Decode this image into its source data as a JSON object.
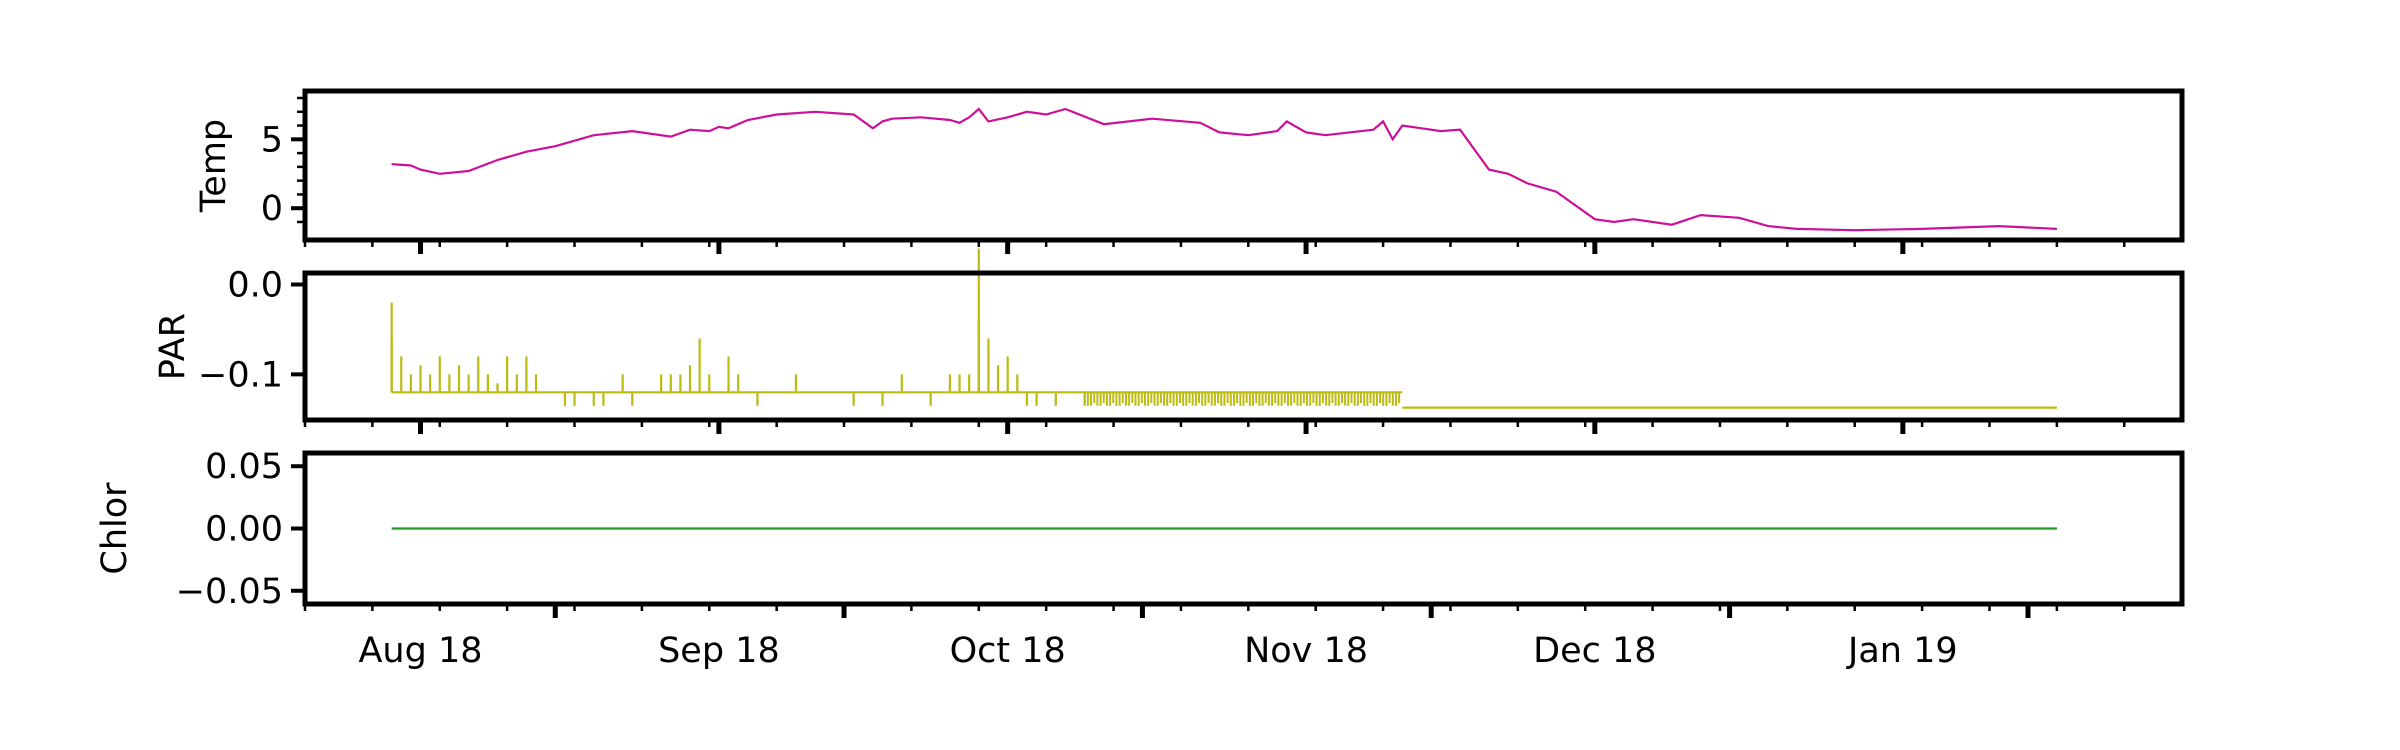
{
  "chart_data": [
    {
      "type": "line",
      "ylabel": "Temp",
      "color": "#cc1199",
      "ylim": [
        -1.8,
        8
      ],
      "yticks": [
        {
          "v": 0,
          "label": "0"
        },
        {
          "v": 5,
          "label": "5"
        }
      ],
      "series": [
        {
          "x": [
            "2018-08-15",
            "2018-08-17",
            "2018-08-18",
            "2018-08-20",
            "2018-08-23",
            "2018-08-26",
            "2018-08-29",
            "2018-09-01",
            "2018-09-05",
            "2018-09-09",
            "2018-09-13",
            "2018-09-15",
            "2018-09-17",
            "2018-09-18",
            "2018-09-19",
            "2018-09-21",
            "2018-09-24",
            "2018-09-28",
            "2018-10-02",
            "2018-10-04",
            "2018-10-05",
            "2018-10-06",
            "2018-10-09",
            "2018-10-12",
            "2018-10-13",
            "2018-10-14",
            "2018-10-15",
            "2018-10-16",
            "2018-10-18",
            "2018-10-20",
            "2018-10-22",
            "2018-10-24",
            "2018-10-28",
            "2018-11-02",
            "2018-11-07",
            "2018-11-09",
            "2018-11-12",
            "2018-11-15",
            "2018-11-16",
            "2018-11-17",
            "2018-11-18",
            "2018-11-20",
            "2018-11-25",
            "2018-11-26",
            "2018-11-27",
            "2018-11-28",
            "2018-11-30",
            "2018-12-02",
            "2018-12-04",
            "2018-12-07",
            "2018-12-09",
            "2018-12-11",
            "2018-12-14",
            "2018-12-18",
            "2018-12-20",
            "2018-12-22",
            "2018-12-26",
            "2018-12-29",
            "2019-01-02",
            "2019-01-05",
            "2019-01-08",
            "2019-01-14",
            "2019-01-21",
            "2019-01-29",
            "2019-02-04"
          ],
          "y": [
            3.2,
            3.1,
            2.8,
            2.5,
            2.7,
            3.5,
            4.1,
            4.5,
            5.3,
            5.6,
            5.2,
            5.7,
            5.6,
            5.9,
            5.8,
            6.4,
            6.8,
            7.0,
            6.8,
            5.8,
            6.3,
            6.5,
            6.6,
            6.4,
            6.2,
            6.6,
            7.2,
            6.3,
            6.6,
            7.0,
            6.8,
            7.2,
            6.1,
            6.5,
            6.2,
            5.5,
            5.3,
            5.6,
            6.3,
            5.9,
            5.5,
            5.3,
            5.7,
            6.3,
            5.0,
            6.0,
            5.8,
            5.6,
            5.7,
            2.8,
            2.5,
            1.8,
            1.2,
            -0.8,
            -1.0,
            -0.8,
            -1.2,
            -0.5,
            -0.7,
            -1.3,
            -1.5,
            -1.6,
            -1.5,
            -1.3,
            -1.5
          ]
        }
      ]
    },
    {
      "type": "line",
      "ylabel": "PAR",
      "color": "#bbbb11",
      "ylim": [
        -0.143,
        0.005
      ],
      "yticks": [
        {
          "v": 0,
          "label": "0.0"
        },
        {
          "v": -0.1,
          "label": "−0.1"
        }
      ],
      "baseline": [
        {
          "start": "2018-08-15",
          "end": "2018-11-28",
          "value": -0.12
        },
        {
          "start": "2018-11-28",
          "end": "2019-02-04",
          "value": -0.137
        }
      ],
      "spikes": [
        {
          "x": "2018-08-15",
          "value": -0.06
        },
        {
          "x": "2018-08-15",
          "value": -0.02
        },
        {
          "x": "2018-08-16",
          "value": -0.08
        },
        {
          "x": "2018-08-17",
          "value": -0.1
        },
        {
          "x": "2018-08-18",
          "value": -0.09
        },
        {
          "x": "2018-08-19",
          "value": -0.1
        },
        {
          "x": "2018-08-20",
          "value": -0.08
        },
        {
          "x": "2018-08-21",
          "value": -0.1
        },
        {
          "x": "2018-08-22",
          "value": -0.09
        },
        {
          "x": "2018-08-23",
          "value": -0.1
        },
        {
          "x": "2018-08-24",
          "value": -0.08
        },
        {
          "x": "2018-08-25",
          "value": -0.1
        },
        {
          "x": "2018-08-26",
          "value": -0.11
        },
        {
          "x": "2018-08-27",
          "value": -0.08
        },
        {
          "x": "2018-08-28",
          "value": -0.1
        },
        {
          "x": "2018-08-29",
          "value": -0.08
        },
        {
          "x": "2018-08-30",
          "value": -0.1
        },
        {
          "x": "2018-09-02",
          "value": -0.135
        },
        {
          "x": "2018-09-03",
          "value": -0.135
        },
        {
          "x": "2018-09-05",
          "value": -0.135
        },
        {
          "x": "2018-09-06",
          "value": -0.135
        },
        {
          "x": "2018-09-08",
          "value": -0.1
        },
        {
          "x": "2018-09-09",
          "value": -0.135
        },
        {
          "x": "2018-09-12",
          "value": -0.1
        },
        {
          "x": "2018-09-13",
          "value": -0.1
        },
        {
          "x": "2018-09-14",
          "value": -0.1
        },
        {
          "x": "2018-09-15",
          "value": -0.09
        },
        {
          "x": "2018-09-16",
          "value": -0.06
        },
        {
          "x": "2018-09-17",
          "value": -0.1
        },
        {
          "x": "2018-09-19",
          "value": -0.08
        },
        {
          "x": "2018-09-20",
          "value": -0.1
        },
        {
          "x": "2018-09-22",
          "value": -0.135
        },
        {
          "x": "2018-09-26",
          "value": -0.1
        },
        {
          "x": "2018-10-02",
          "value": -0.135
        },
        {
          "x": "2018-10-05",
          "value": -0.135
        },
        {
          "x": "2018-10-07",
          "value": -0.1
        },
        {
          "x": "2018-10-10",
          "value": -0.135
        },
        {
          "x": "2018-10-12",
          "value": -0.1
        },
        {
          "x": "2018-10-13",
          "value": -0.1
        },
        {
          "x": "2018-10-14",
          "value": -0.1
        },
        {
          "x": "2018-10-15",
          "value": 0.04
        },
        {
          "x": "2018-10-15",
          "value": -0.04
        },
        {
          "x": "2018-10-16",
          "value": -0.06
        },
        {
          "x": "2018-10-17",
          "value": -0.09
        },
        {
          "x": "2018-10-18",
          "value": -0.08
        },
        {
          "x": "2018-10-19",
          "value": -0.1
        },
        {
          "x": "2018-10-20",
          "value": -0.135
        },
        {
          "x": "2018-10-21",
          "value": -0.135
        },
        {
          "x": "2018-10-23",
          "value": -0.135
        },
        {
          "x": "2018-10-26",
          "value": -0.135
        },
        {
          "x": "2018-11-30",
          "value": -0.12
        }
      ],
      "dense_noise": {
        "start": "2018-10-26",
        "end": "2018-11-28",
        "low": -0.135
      }
    },
    {
      "type": "line",
      "ylabel": "Chlor",
      "color": "#229922",
      "ylim": [
        -0.055,
        0.055
      ],
      "yticks": [
        {
          "v": 0.05,
          "label": "0.05"
        },
        {
          "v": 0,
          "label": "0.00"
        },
        {
          "v": -0.05,
          "label": "−0.05"
        }
      ],
      "series": [
        {
          "x": [
            "2018-08-15",
            "2019-02-04"
          ],
          "y": [
            0,
            0
          ]
        }
      ]
    }
  ],
  "xaxis": {
    "range": [
      "2018-08-06",
      "2019-02-17"
    ],
    "ticks_top": [
      {
        "date": "2018-08-18"
      },
      {
        "date": "2018-09-18"
      },
      {
        "date": "2018-10-18"
      },
      {
        "date": "2018-11-18"
      },
      {
        "date": "2018-12-18"
      },
      {
        "date": "2019-01-19"
      }
    ],
    "ticks_bottom": [
      {
        "date": "2018-08-18",
        "label": "Aug 18"
      },
      {
        "date": "2018-09-18",
        "label": "Sep 18"
      },
      {
        "date": "2018-10-18",
        "label": "Oct 18"
      },
      {
        "date": "2018-11-18",
        "label": "Nov 18"
      },
      {
        "date": "2018-12-18",
        "label": "Dec 18"
      },
      {
        "date": "2019-01-19",
        "label": "Jan 19"
      }
    ],
    "month_ticks": [
      "2018-09-01",
      "2018-10-01",
      "2018-11-01",
      "2018-12-01",
      "2019-01-01",
      "2019-02-01"
    ]
  }
}
